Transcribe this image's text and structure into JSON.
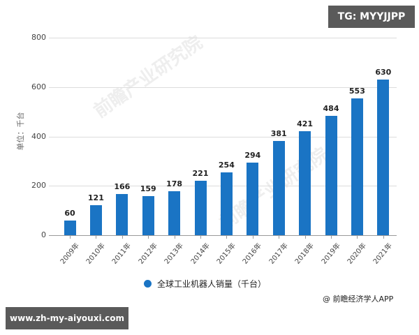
{
  "badges": {
    "top_right": "TG: MYYJJPP",
    "bottom_left": "www.zh-my-aiyouxi.com"
  },
  "watermark": "前瞻产业研究院",
  "credit": "@ 前瞻经济学人APP",
  "colors": {
    "bar": "#1a74c4",
    "grid": "#dcdcdc",
    "badge_bg": "#5a5a5a"
  },
  "chart_data": {
    "type": "bar",
    "title": "",
    "xlabel": "",
    "ylabel": "单位：千台",
    "ylim": [
      0,
      800
    ],
    "yticks": [
      0,
      200,
      400,
      600,
      800
    ],
    "grid": true,
    "legend_position": "bottom",
    "categories": [
      "2009年",
      "2010年",
      "2011年",
      "2012年",
      "2013年",
      "2014年",
      "2015年",
      "2016年",
      "2017年",
      "2018年",
      "2019年",
      "2020年",
      "2021年"
    ],
    "series": [
      {
        "name": "全球工业机器人销量（千台）",
        "values": [
          60,
          121,
          166,
          159,
          178,
          221,
          254,
          294,
          381,
          421,
          484,
          553,
          630
        ]
      }
    ]
  }
}
